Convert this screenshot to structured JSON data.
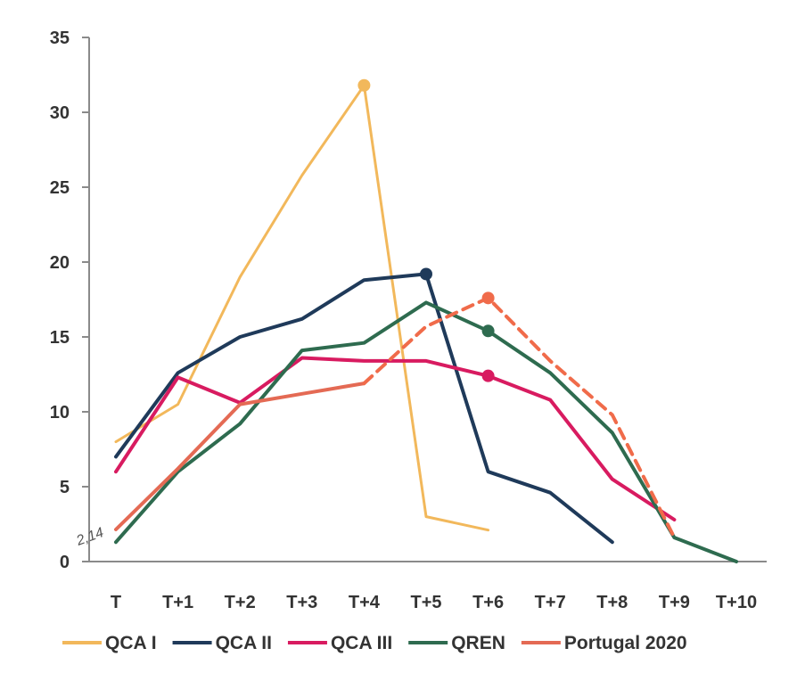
{
  "chart_data": {
    "type": "line",
    "title": "",
    "xlabel": "",
    "ylabel": "",
    "categories": [
      "T",
      "T+1",
      "T+2",
      "T+3",
      "T+4",
      "T+5",
      "T+6",
      "T+7",
      "T+8",
      "T+9",
      "T+10"
    ],
    "y_ticks": [
      "0",
      "5",
      "10",
      "15",
      "20",
      "25",
      "30",
      "35"
    ],
    "ylim": [
      0,
      35
    ],
    "grid": false,
    "legend_position": "bottom",
    "annotation": "2,14",
    "series": [
      {
        "name": "QCA I",
        "color": "#f2b85b",
        "style": "solid",
        "width": 3,
        "values": [
          8.0,
          10.5,
          19.0,
          25.8,
          31.8,
          3.0,
          2.1,
          null,
          null,
          null,
          null
        ],
        "marker_index": 4
      },
      {
        "name": "QCA II",
        "color": "#1f3a5a",
        "style": "solid",
        "width": 4,
        "values": [
          7.0,
          12.6,
          15.0,
          16.2,
          18.8,
          19.2,
          6.0,
          4.6,
          1.3,
          null,
          null
        ],
        "marker_index": 5
      },
      {
        "name": "QCA III",
        "color": "#d81b60",
        "style": "solid",
        "width": 4,
        "values": [
          6.0,
          12.3,
          10.6,
          13.6,
          13.4,
          13.4,
          12.4,
          10.8,
          5.5,
          2.8,
          null
        ],
        "marker_index": 6
      },
      {
        "name": "QREN",
        "color": "#2e6b4f",
        "style": "solid",
        "width": 4,
        "values": [
          1.3,
          6.0,
          9.2,
          14.1,
          14.6,
          17.3,
          15.4,
          12.6,
          8.6,
          1.6,
          0.0
        ],
        "marker_index": 6
      },
      {
        "name": "Portugal 2020",
        "color": "#e46a54",
        "style": "solid",
        "width": 4,
        "values": [
          2.14,
          6.2,
          10.5,
          11.2,
          11.9,
          null,
          null,
          null,
          null,
          null,
          null
        ],
        "marker_index": null
      },
      {
        "name": "Portugal 2020",
        "color": "#f06b4a",
        "style": "dashed",
        "width": 4,
        "legend": false,
        "values": [
          null,
          null,
          null,
          null,
          11.9,
          15.7,
          17.6,
          13.4,
          9.8,
          1.6,
          null
        ],
        "marker_index": 6
      }
    ]
  }
}
